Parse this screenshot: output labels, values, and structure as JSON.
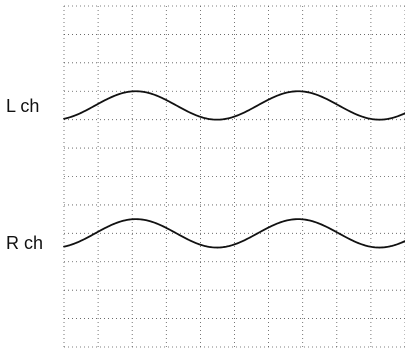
{
  "chart_data": {
    "type": "line",
    "title": "",
    "xlabel": "",
    "ylabel": "",
    "grid": true,
    "grid_divisions": {
      "x": 10,
      "y": 12
    },
    "x": [
      0,
      0.5,
      1,
      1.5,
      2,
      2.5,
      3,
      3.5,
      4,
      4.5,
      5
    ],
    "series": [
      {
        "name": "L ch",
        "waveform": "sine",
        "cycles": 2.1,
        "amplitude_div": 0.5,
        "center_div": 3.5
      },
      {
        "name": "R ch",
        "waveform": "sine",
        "cycles": 2.1,
        "amplitude_div": 0.5,
        "center_div": 8.0
      }
    ]
  },
  "colors": {
    "trace": "#111111",
    "grid": "#555555",
    "background": "#ffffff"
  }
}
